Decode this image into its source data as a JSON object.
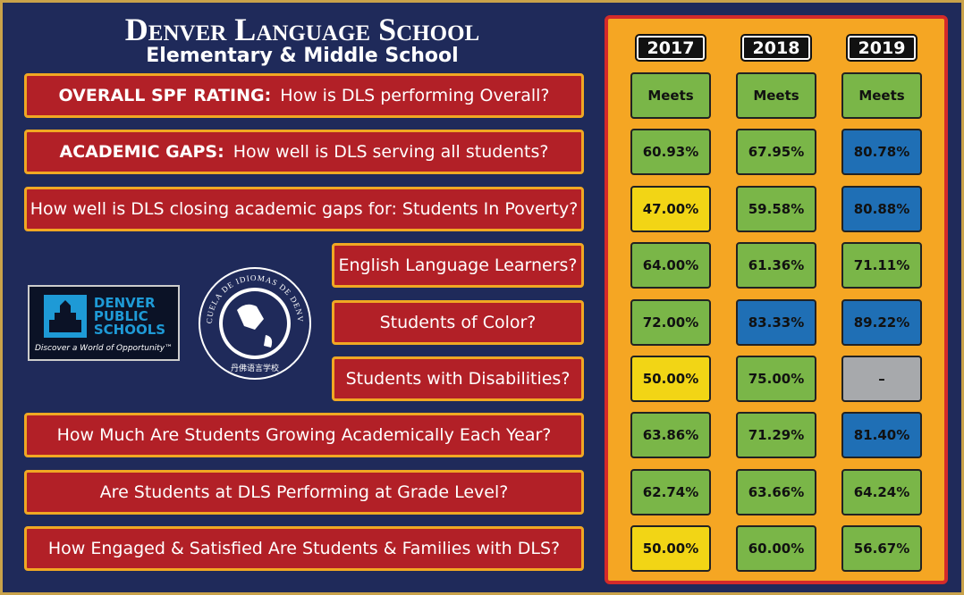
{
  "header": {
    "title": "Denver Language School",
    "subtitle": "Elementary & Middle School"
  },
  "years": [
    "2017",
    "2018",
    "2019"
  ],
  "rows": [
    {
      "lead": "OVERALL SPF RATING:",
      "text": "How is DLS performing Overall?",
      "cells": [
        {
          "text": "Meets",
          "color": "#7ab648"
        },
        {
          "text": "Meets",
          "color": "#7ab648"
        },
        {
          "text": "Meets",
          "color": "#7ab648"
        }
      ]
    },
    {
      "lead": "ACADEMIC GAPS:",
      "text": "How well is DLS serving all students?",
      "cells": [
        {
          "text": "60.93%",
          "color": "#7ab648"
        },
        {
          "text": "67.95%",
          "color": "#7ab648"
        },
        {
          "text": "80.78%",
          "color": "#1f6fb5"
        }
      ]
    },
    {
      "text": "How well is DLS closing academic gaps for:  Students In Poverty?",
      "cells": [
        {
          "text": "47.00%",
          "color": "#f2d515"
        },
        {
          "text": "59.58%",
          "color": "#7ab648"
        },
        {
          "text": "80.88%",
          "color": "#1f6fb5"
        }
      ]
    },
    {
      "text": "English Language Learners?",
      "cells": [
        {
          "text": "64.00%",
          "color": "#7ab648"
        },
        {
          "text": "61.36%",
          "color": "#7ab648"
        },
        {
          "text": "71.11%",
          "color": "#7ab648"
        }
      ]
    },
    {
      "text": "Students of Color?",
      "cells": [
        {
          "text": "72.00%",
          "color": "#7ab648"
        },
        {
          "text": "83.33%",
          "color": "#1f6fb5"
        },
        {
          "text": "89.22%",
          "color": "#1f6fb5"
        }
      ]
    },
    {
      "text": "Students with Disabilities?",
      "cells": [
        {
          "text": "50.00%",
          "color": "#f2d515"
        },
        {
          "text": "75.00%",
          "color": "#7ab648"
        },
        {
          "text": "–",
          "color": "#a7a9ac"
        }
      ]
    },
    {
      "text": "How Much Are Students Growing Academically Each Year?",
      "cells": [
        {
          "text": "63.86%",
          "color": "#7ab648"
        },
        {
          "text": "71.29%",
          "color": "#7ab648"
        },
        {
          "text": "81.40%",
          "color": "#1f6fb5"
        }
      ]
    },
    {
      "text": "Are Students at DLS Performing at Grade Level?",
      "cells": [
        {
          "text": "62.74%",
          "color": "#7ab648"
        },
        {
          "text": "63.66%",
          "color": "#7ab648"
        },
        {
          "text": "64.24%",
          "color": "#7ab648"
        }
      ]
    },
    {
      "text": "How Engaged & Satisfied Are Students & Families with DLS?",
      "cells": [
        {
          "text": "50.00%",
          "color": "#f2d515"
        },
        {
          "text": "60.00%",
          "color": "#7ab648"
        },
        {
          "text": "56.67%",
          "color": "#7ab648"
        }
      ]
    }
  ],
  "logos": {
    "dps": [
      "DENVER",
      "PUBLIC",
      "SCHOOLS"
    ],
    "dps_tagline": "Discover a World of Opportunity™",
    "seal_ring": "ESCUELA DE IDIOMAS DE DENVER",
    "seal_chinese": "丹佛语言学校"
  }
}
